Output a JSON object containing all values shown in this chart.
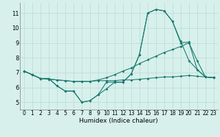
{
  "title": "",
  "xlabel": "Humidex (Indice chaleur)",
  "ylabel": "",
  "bg_color": "#d7f0ec",
  "grid_color": "#b8dbd5",
  "line_color": "#1a7a6e",
  "xlim": [
    -0.5,
    23.5
  ],
  "ylim": [
    4.5,
    11.7
  ],
  "xticks": [
    0,
    1,
    2,
    3,
    4,
    5,
    6,
    7,
    8,
    9,
    10,
    11,
    12,
    13,
    14,
    15,
    16,
    17,
    18,
    19,
    20,
    21,
    22,
    23
  ],
  "yticks": [
    5,
    6,
    7,
    8,
    9,
    10,
    11
  ],
  "line1_x": [
    0,
    1,
    2,
    3,
    4,
    5,
    6,
    7,
    8,
    9,
    10,
    11,
    12,
    13,
    14,
    15,
    16,
    17,
    18,
    19,
    20,
    21,
    22,
    23
  ],
  "line1_y": [
    7.1,
    6.85,
    6.6,
    6.6,
    6.1,
    5.75,
    5.75,
    5.0,
    5.1,
    5.5,
    5.9,
    6.35,
    6.35,
    6.9,
    8.2,
    11.0,
    11.25,
    11.15,
    10.45,
    9.1,
    7.8,
    7.2,
    6.7,
    6.65
  ],
  "line2_x": [
    0,
    1,
    2,
    3,
    4,
    5,
    6,
    7,
    8,
    9,
    10,
    11,
    12,
    13,
    14,
    15,
    16,
    17,
    18,
    19,
    20,
    21,
    22,
    23
  ],
  "line2_y": [
    7.1,
    6.85,
    6.6,
    6.6,
    6.1,
    5.75,
    5.75,
    5.0,
    5.1,
    5.5,
    6.35,
    6.35,
    6.35,
    6.9,
    8.2,
    11.0,
    11.25,
    11.15,
    10.45,
    9.0,
    9.05,
    7.2,
    6.7,
    6.65
  ],
  "line3_x": [
    0,
    1,
    2,
    3,
    4,
    5,
    6,
    7,
    8,
    9,
    10,
    11,
    12,
    13,
    14,
    15,
    16,
    17,
    18,
    19,
    20,
    21,
    22,
    23
  ],
  "line3_y": [
    7.1,
    6.85,
    6.6,
    6.55,
    6.5,
    6.45,
    6.4,
    6.4,
    6.4,
    6.5,
    6.65,
    6.85,
    7.1,
    7.3,
    7.6,
    7.85,
    8.1,
    8.35,
    8.55,
    8.75,
    9.0,
    7.8,
    6.7,
    6.65
  ],
  "line4_x": [
    0,
    1,
    2,
    3,
    4,
    5,
    6,
    7,
    8,
    9,
    10,
    11,
    12,
    13,
    14,
    15,
    16,
    17,
    18,
    19,
    20,
    21,
    22,
    23
  ],
  "line4_y": [
    7.1,
    6.85,
    6.6,
    6.55,
    6.5,
    6.45,
    6.4,
    6.4,
    6.4,
    6.45,
    6.45,
    6.45,
    6.5,
    6.5,
    6.55,
    6.6,
    6.65,
    6.7,
    6.7,
    6.75,
    6.8,
    6.75,
    6.7,
    6.65
  ]
}
